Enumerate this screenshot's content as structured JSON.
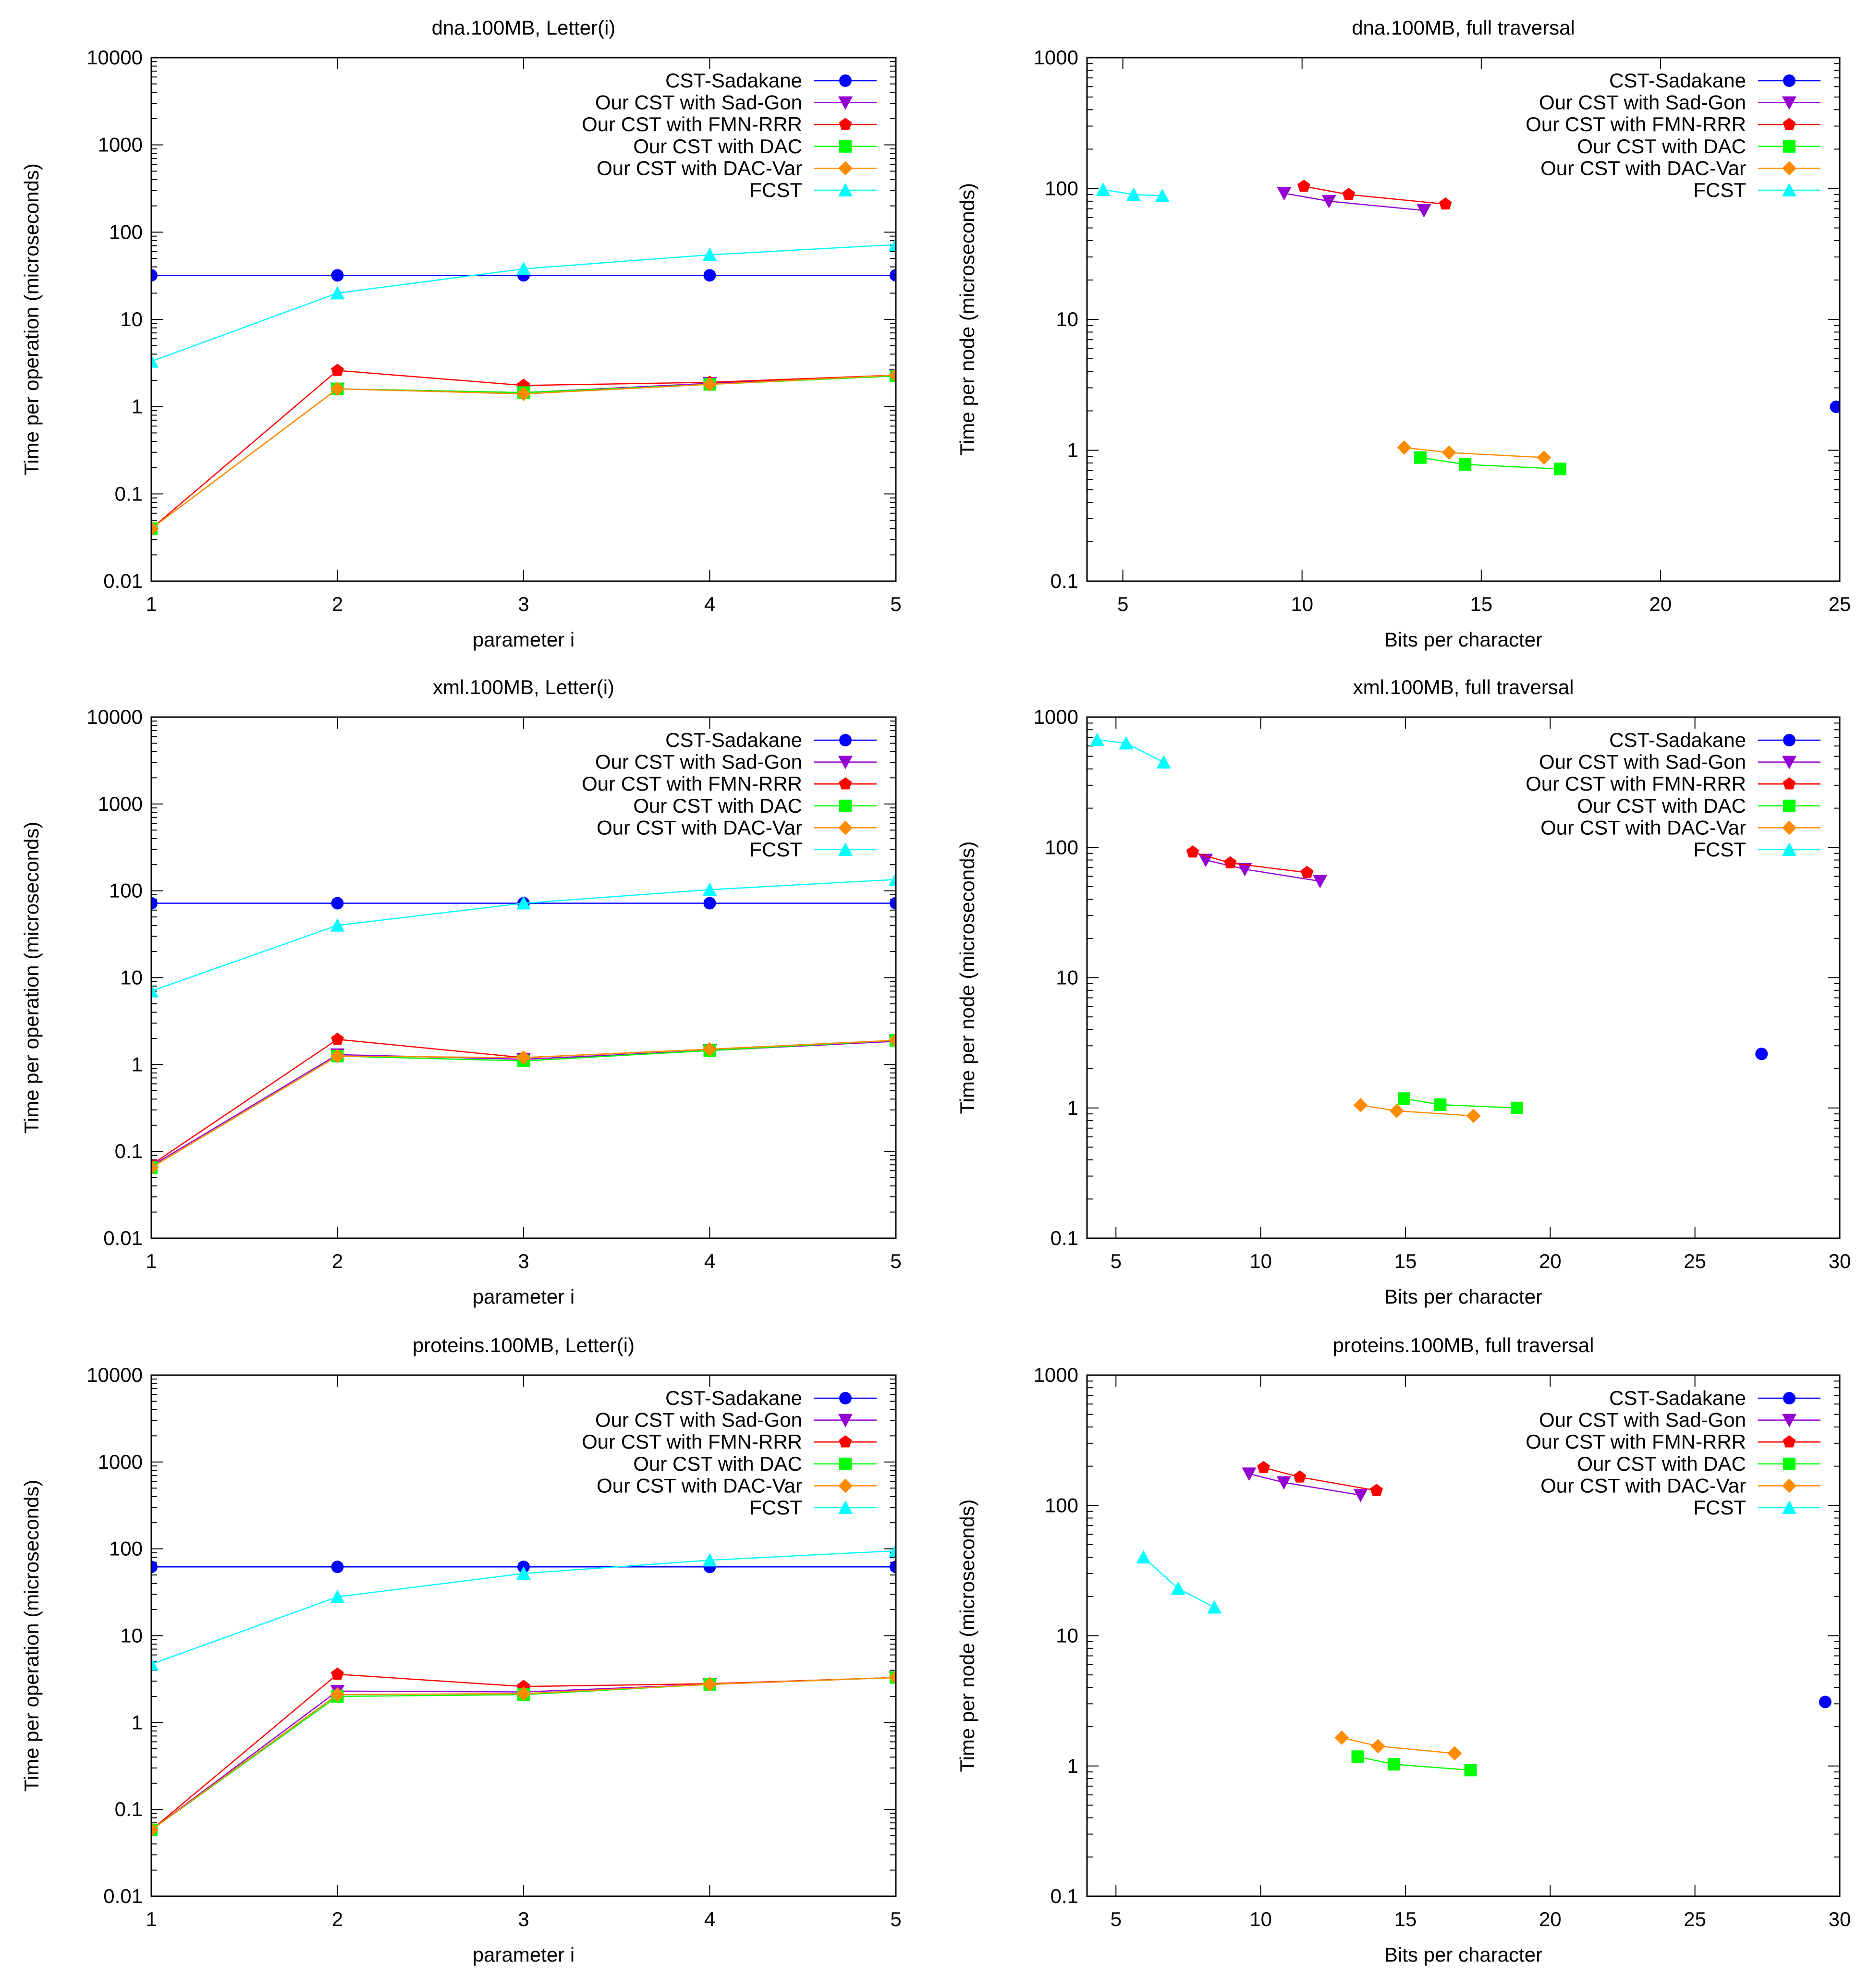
{
  "figure": {
    "legend_entries": [
      "CST-Sadakane",
      "Our CST with Sad-Gon",
      "Our CST with FMN-RRR",
      "Our CST with DAC",
      "Our CST with DAC-Var",
      "FCST"
    ],
    "series_colors": {
      "CST-Sadakane": "#0000ff",
      "Our CST with Sad-Gon": "#9400d3",
      "Our CST with FMN-RRR": "#ff0000",
      "Our CST with DAC": "#00ff00",
      "Our CST with DAC-Var": "#ff8c00",
      "FCST": "#00ffff"
    },
    "series_markers": {
      "CST-Sadakane": "circle-icon",
      "Our CST with Sad-Gon": "triangle-down-icon",
      "Our CST with FMN-RRR": "pentagon-icon",
      "Our CST with DAC": "square-icon",
      "Our CST with DAC-Var": "diamond-icon",
      "FCST": "triangle-up-icon"
    }
  },
  "chart_data": [
    {
      "type": "line",
      "title": "dna.100MB, Letter(i)",
      "xlabel": "parameter i",
      "ylabel": "Time per operation (microseconds)",
      "yscale": "log",
      "xlim": [
        1,
        5
      ],
      "ylim": [
        0.01,
        10000
      ],
      "xticks": [
        1,
        2,
        3,
        4,
        5
      ],
      "xtick_labels": [
        "1",
        "2",
        "3",
        "4",
        "5"
      ],
      "yticks": [
        0.01,
        0.1,
        1,
        10,
        100,
        1000,
        10000
      ],
      "ytick_labels": [
        "0.01",
        "0.1",
        "1",
        "10",
        "100",
        "1000",
        "10000"
      ],
      "legend": "top-right",
      "series": [
        {
          "name": "CST-Sadakane",
          "x": [
            1,
            2,
            3,
            4,
            5
          ],
          "y": [
            32,
            32,
            32,
            32,
            32
          ]
        },
        {
          "name": "Our CST with Sad-Gon",
          "x": [
            1,
            2,
            3,
            4,
            5
          ],
          "y": [
            0.04,
            1.6,
            1.45,
            1.85,
            2.3
          ]
        },
        {
          "name": "Our CST with FMN-RRR",
          "x": [
            1,
            2,
            3,
            4,
            5
          ],
          "y": [
            0.04,
            2.6,
            1.75,
            1.9,
            2.3
          ]
        },
        {
          "name": "Our CST with DAC",
          "x": [
            1,
            2,
            3,
            4,
            5
          ],
          "y": [
            0.04,
            1.6,
            1.45,
            1.8,
            2.25
          ]
        },
        {
          "name": "Our CST with DAC-Var",
          "x": [
            1,
            2,
            3,
            4,
            5
          ],
          "y": [
            0.04,
            1.6,
            1.4,
            1.8,
            2.3
          ]
        },
        {
          "name": "FCST",
          "x": [
            1,
            2,
            3,
            4,
            5
          ],
          "y": [
            3.3,
            20,
            38,
            55,
            72
          ]
        }
      ]
    },
    {
      "type": "scatter",
      "title": "dna.100MB, full traversal",
      "xlabel": "Bits per character",
      "ylabel": "Time per node (microseconds)",
      "yscale": "log",
      "xlim": [
        4,
        25
      ],
      "ylim": [
        0.1,
        1000
      ],
      "xticks": [
        5,
        10,
        15,
        20,
        25
      ],
      "xtick_labels": [
        "5",
        "10",
        "15",
        "20",
        "25"
      ],
      "yticks": [
        0.1,
        1,
        10,
        100,
        1000
      ],
      "ytick_labels": [
        "0.1",
        "1",
        "10",
        "100",
        "1000"
      ],
      "legend": "top-right",
      "series": [
        {
          "name": "CST-Sadakane",
          "x": [
            24.9
          ],
          "y": [
            2.15
          ]
        },
        {
          "name": "Our CST with Sad-Gon",
          "x": [
            9.5,
            10.75,
            13.4
          ],
          "y": [
            92,
            80,
            68
          ]
        },
        {
          "name": "Our CST with FMN-RRR",
          "x": [
            10.05,
            11.3,
            14.0
          ],
          "y": [
            104,
            90,
            76
          ]
        },
        {
          "name": "Our CST with DAC",
          "x": [
            13.3,
            14.55,
            17.2
          ],
          "y": [
            0.88,
            0.78,
            0.72
          ]
        },
        {
          "name": "Our CST with DAC-Var",
          "x": [
            12.85,
            14.1,
            16.75
          ],
          "y": [
            1.05,
            0.96,
            0.88
          ]
        },
        {
          "name": "FCST",
          "x": [
            4.45,
            5.3,
            6.1
          ],
          "y": [
            98,
            90,
            88
          ]
        }
      ]
    },
    {
      "type": "line",
      "title": "xml.100MB, Letter(i)",
      "xlabel": "parameter i",
      "ylabel": "Time per operation (microseconds)",
      "yscale": "log",
      "xlim": [
        1,
        5
      ],
      "ylim": [
        0.01,
        10000
      ],
      "xticks": [
        1,
        2,
        3,
        4,
        5
      ],
      "xtick_labels": [
        "1",
        "2",
        "3",
        "4",
        "5"
      ],
      "yticks": [
        0.01,
        0.1,
        1,
        10,
        100,
        1000,
        10000
      ],
      "ytick_labels": [
        "0.01",
        "0.1",
        "1",
        "10",
        "100",
        "1000",
        "10000"
      ],
      "legend": "top-right",
      "series": [
        {
          "name": "CST-Sadakane",
          "x": [
            1,
            2,
            3,
            4,
            5
          ],
          "y": [
            72,
            72,
            72,
            72,
            72
          ]
        },
        {
          "name": "Our CST with Sad-Gon",
          "x": [
            1,
            2,
            3,
            4,
            5
          ],
          "y": [
            0.068,
            1.3,
            1.15,
            1.45,
            1.85
          ]
        },
        {
          "name": "Our CST with FMN-RRR",
          "x": [
            1,
            2,
            3,
            4,
            5
          ],
          "y": [
            0.07,
            1.95,
            1.2,
            1.5,
            1.9
          ]
        },
        {
          "name": "Our CST with DAC",
          "x": [
            1,
            2,
            3,
            4,
            5
          ],
          "y": [
            0.065,
            1.25,
            1.1,
            1.45,
            1.9
          ]
        },
        {
          "name": "Our CST with DAC-Var",
          "x": [
            1,
            2,
            3,
            4,
            5
          ],
          "y": [
            0.065,
            1.25,
            1.2,
            1.5,
            1.9
          ]
        },
        {
          "name": "FCST",
          "x": [
            1,
            2,
            3,
            4,
            5
          ],
          "y": [
            7,
            40,
            72,
            103,
            135
          ]
        }
      ]
    },
    {
      "type": "scatter",
      "title": "xml.100MB, full traversal",
      "xlabel": "Bits per character",
      "ylabel": "Time per node (microseconds)",
      "yscale": "log",
      "xlim": [
        4,
        30
      ],
      "ylim": [
        0.1,
        1000
      ],
      "xticks": [
        5,
        10,
        15,
        20,
        25,
        30
      ],
      "xtick_labels": [
        "5",
        "10",
        "15",
        "20",
        "25",
        "30"
      ],
      "yticks": [
        0.1,
        1,
        10,
        100,
        1000
      ],
      "ytick_labels": [
        "0.1",
        "1",
        "10",
        "100",
        "1000"
      ],
      "legend": "top-right",
      "series": [
        {
          "name": "CST-Sadakane",
          "x": [
            27.3
          ],
          "y": [
            2.6
          ]
        },
        {
          "name": "Our CST with Sad-Gon",
          "x": [
            8.1,
            9.45,
            12.05
          ],
          "y": [
            80,
            68,
            55
          ]
        },
        {
          "name": "Our CST with FMN-RRR",
          "x": [
            7.65,
            8.95,
            11.6
          ],
          "y": [
            92,
            76,
            64
          ]
        },
        {
          "name": "Our CST with DAC",
          "x": [
            14.95,
            16.2,
            18.85
          ],
          "y": [
            1.18,
            1.06,
            1.0
          ]
        },
        {
          "name": "Our CST with DAC-Var",
          "x": [
            13.45,
            14.7,
            17.35
          ],
          "y": [
            1.05,
            0.95,
            0.87
          ]
        },
        {
          "name": "FCST",
          "x": [
            4.35,
            5.35,
            6.65
          ],
          "y": [
            670,
            630,
            450
          ]
        }
      ]
    },
    {
      "type": "line",
      "title": "proteins.100MB, Letter(i)",
      "xlabel": "parameter i",
      "ylabel": "Time per operation (microseconds)",
      "yscale": "log",
      "xlim": [
        1,
        5
      ],
      "ylim": [
        0.01,
        10000
      ],
      "xticks": [
        1,
        2,
        3,
        4,
        5
      ],
      "xtick_labels": [
        "1",
        "2",
        "3",
        "4",
        "5"
      ],
      "yticks": [
        0.01,
        0.1,
        1,
        10,
        100,
        1000,
        10000
      ],
      "ytick_labels": [
        "0.01",
        "0.1",
        "1",
        "10",
        "100",
        "1000",
        "10000"
      ],
      "legend": "top-right",
      "series": [
        {
          "name": "CST-Sadakane",
          "x": [
            1,
            2,
            3,
            4,
            5
          ],
          "y": [
            62,
            62,
            62,
            62,
            62
          ]
        },
        {
          "name": "Our CST with Sad-Gon",
          "x": [
            1,
            2,
            3,
            4,
            5
          ],
          "y": [
            0.058,
            2.3,
            2.25,
            2.75,
            3.3
          ]
        },
        {
          "name": "Our CST with FMN-RRR",
          "x": [
            1,
            2,
            3,
            4,
            5
          ],
          "y": [
            0.058,
            3.6,
            2.6,
            2.8,
            3.3
          ]
        },
        {
          "name": "Our CST with DAC",
          "x": [
            1,
            2,
            3,
            4,
            5
          ],
          "y": [
            0.058,
            2.0,
            2.1,
            2.75,
            3.3
          ]
        },
        {
          "name": "Our CST with DAC-Var",
          "x": [
            1,
            2,
            3,
            4,
            5
          ],
          "y": [
            0.058,
            2.1,
            2.15,
            2.75,
            3.3
          ]
        },
        {
          "name": "FCST",
          "x": [
            1,
            2,
            3,
            4,
            5
          ],
          "y": [
            4.7,
            28,
            52,
            74,
            95
          ]
        }
      ]
    },
    {
      "type": "scatter",
      "title": "proteins.100MB, full traversal",
      "xlabel": "Bits per character",
      "ylabel": "Time per node (microseconds)",
      "yscale": "log",
      "xlim": [
        4,
        30
      ],
      "ylim": [
        0.1,
        1000
      ],
      "xticks": [
        5,
        10,
        15,
        20,
        25,
        30
      ],
      "xtick_labels": [
        "5",
        "10",
        "15",
        "20",
        "25",
        "30"
      ],
      "yticks": [
        0.1,
        1,
        10,
        100,
        1000
      ],
      "ytick_labels": [
        "0.1",
        "1",
        "10",
        "100",
        "1000"
      ],
      "legend": "top-right",
      "series": [
        {
          "name": "CST-Sadakane",
          "x": [
            29.5
          ],
          "y": [
            3.1
          ]
        },
        {
          "name": "Our CST with Sad-Gon",
          "x": [
            9.6,
            10.8,
            13.45
          ],
          "y": [
            175,
            150,
            120
          ]
        },
        {
          "name": "Our CST with FMN-RRR",
          "x": [
            10.1,
            11.35,
            14.0
          ],
          "y": [
            195,
            165,
            130
          ]
        },
        {
          "name": "Our CST with DAC",
          "x": [
            13.35,
            14.6,
            17.25
          ],
          "y": [
            1.18,
            1.03,
            0.93
          ]
        },
        {
          "name": "Our CST with DAC-Var",
          "x": [
            12.8,
            14.05,
            16.7
          ],
          "y": [
            1.65,
            1.42,
            1.25
          ]
        },
        {
          "name": "FCST",
          "x": [
            5.95,
            7.15,
            8.4
          ],
          "y": [
            40,
            23,
            16.5
          ]
        }
      ]
    }
  ]
}
